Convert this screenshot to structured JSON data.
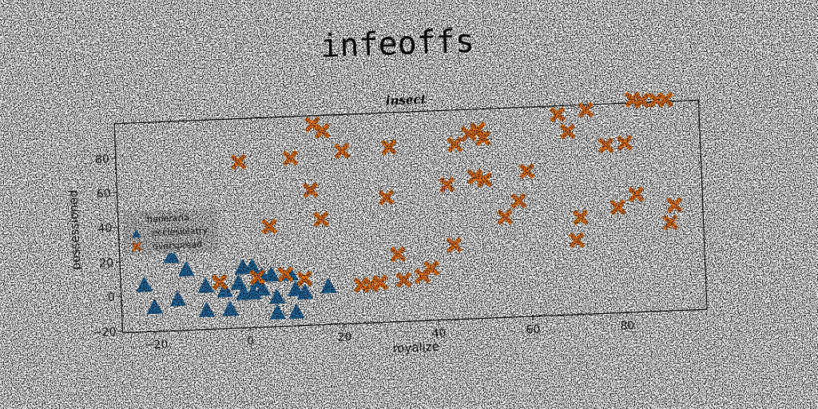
{
  "chart_data": {
    "type": "scatter",
    "suptitle": "infeoffs",
    "title": "insect",
    "xlabel": "royalize",
    "ylabel": "possessioned",
    "xlim": [
      -27,
      97
    ],
    "ylim": [
      -21,
      100
    ],
    "xticks": [
      -20,
      0,
      20,
      40,
      60,
      80
    ],
    "yticks": [
      -20,
      0,
      20,
      40,
      60,
      80
    ],
    "grid": false,
    "legend": {
      "title": "honoraria",
      "placement": "center-left"
    },
    "series": [
      {
        "name": "ecclesiolatry",
        "marker": "triangle",
        "color": "#1f77b4",
        "points": [
          [
            -22,
            6
          ],
          [
            -20,
            -7
          ],
          [
            -16,
            22
          ],
          [
            -15,
            -3
          ],
          [
            -13,
            14
          ],
          [
            -9,
            4
          ],
          [
            -9,
            -10
          ],
          [
            -5,
            1
          ],
          [
            -4,
            -10
          ],
          [
            -2,
            5
          ],
          [
            -1,
            14
          ],
          [
            -1,
            -1
          ],
          [
            1,
            -1
          ],
          [
            1,
            14
          ],
          [
            2,
            6
          ],
          [
            3,
            9
          ],
          [
            3,
            1
          ],
          [
            5,
            9
          ],
          [
            6,
            -4
          ],
          [
            6,
            -13
          ],
          [
            9,
            9
          ],
          [
            10,
            0
          ],
          [
            10,
            -13
          ],
          [
            12,
            -2
          ],
          [
            17,
            1
          ]
        ]
      },
      {
        "name": "overspread",
        "marker": "x",
        "color": "#ff7f0e",
        "points": [
          [
            -6,
            6
          ],
          [
            -1,
            75
          ],
          [
            2,
            8
          ],
          [
            5,
            37
          ],
          [
            8,
            9
          ],
          [
            10,
            76
          ],
          [
            12,
            6
          ],
          [
            14,
            57
          ],
          [
            15,
            95
          ],
          [
            16,
            40
          ],
          [
            17,
            91
          ],
          [
            21,
            79
          ],
          [
            24,
            1
          ],
          [
            26,
            1
          ],
          [
            28,
            2
          ],
          [
            30,
            51
          ],
          [
            31,
            80
          ],
          [
            32,
            18
          ],
          [
            33,
            3
          ],
          [
            37,
            5
          ],
          [
            39,
            9
          ],
          [
            43,
            57
          ],
          [
            44,
            22
          ],
          [
            45,
            80
          ],
          [
            48,
            86
          ],
          [
            49,
            61
          ],
          [
            50,
            88
          ],
          [
            51,
            83
          ],
          [
            51,
            59
          ],
          [
            55,
            37
          ],
          [
            58,
            46
          ],
          [
            60,
            63
          ],
          [
            67,
            95
          ],
          [
            69,
            85
          ],
          [
            70,
            22
          ],
          [
            71,
            35
          ],
          [
            73,
            97
          ],
          [
            77,
            76
          ],
          [
            79,
            40
          ],
          [
            81,
            77
          ],
          [
            83,
            47
          ],
          [
            83,
            102
          ],
          [
            85,
            101
          ],
          [
            88,
            101
          ],
          [
            90,
            30
          ],
          [
            90,
            101
          ],
          [
            91,
            40
          ]
        ]
      }
    ]
  }
}
